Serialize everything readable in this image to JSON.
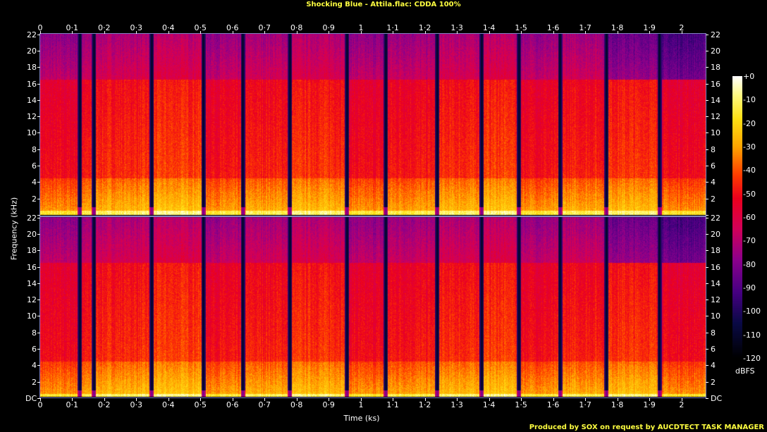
{
  "title": "Shocking Blue - Attila.flac: CDDA 100%",
  "credit": "Produced by SOX on request by AUCDTECT TASK MANAGER",
  "chart_data": {
    "type": "heatmap",
    "title": "Shocking Blue - Attila.flac: CDDA 100%",
    "xlabel": "Time (ks)",
    "ylabel": "Frequency (kHz)",
    "xlim": [
      0,
      2.075
    ],
    "ylim": [
      0,
      22.05
    ],
    "channels": 2,
    "x_ticks": [
      "0",
      "0·1",
      "0·2",
      "0·3",
      "0·4",
      "0·5",
      "0·6",
      "0·7",
      "0·8",
      "0·9",
      "1",
      "1·1",
      "1·2",
      "1·3",
      "1·4",
      "1·5",
      "1·6",
      "1·7",
      "1·8",
      "1·9",
      "2"
    ],
    "x_tick_values": [
      0,
      0.1,
      0.2,
      0.3,
      0.4,
      0.5,
      0.6,
      0.7,
      0.8,
      0.9,
      1,
      1.1,
      1.2,
      1.3,
      1.4,
      1.5,
      1.6,
      1.7,
      1.8,
      1.9,
      2
    ],
    "y_ticks": [
      "DC",
      "2",
      "4",
      "6",
      "8",
      "10",
      "12",
      "14",
      "16",
      "18",
      "20",
      "22"
    ],
    "y_tick_values": [
      0,
      2,
      4,
      6,
      8,
      10,
      12,
      14,
      16,
      18,
      20,
      22
    ],
    "track_boundaries_ks": [
      0.123,
      0.167,
      0.347,
      0.508,
      0.631,
      0.778,
      0.956,
      1.077,
      1.237,
      1.376,
      1.492,
      1.62,
      1.765,
      1.93
    ],
    "lowpass_khz": 16.5,
    "colorbar": {
      "unit": "dBFS",
      "ticks": [
        "+0",
        "-10",
        "-20",
        "-30",
        "-40",
        "-50",
        "-60",
        "-70",
        "-80",
        "-90",
        "-100",
        "-110",
        "-120"
      ],
      "range": [
        -120,
        0
      ]
    }
  }
}
